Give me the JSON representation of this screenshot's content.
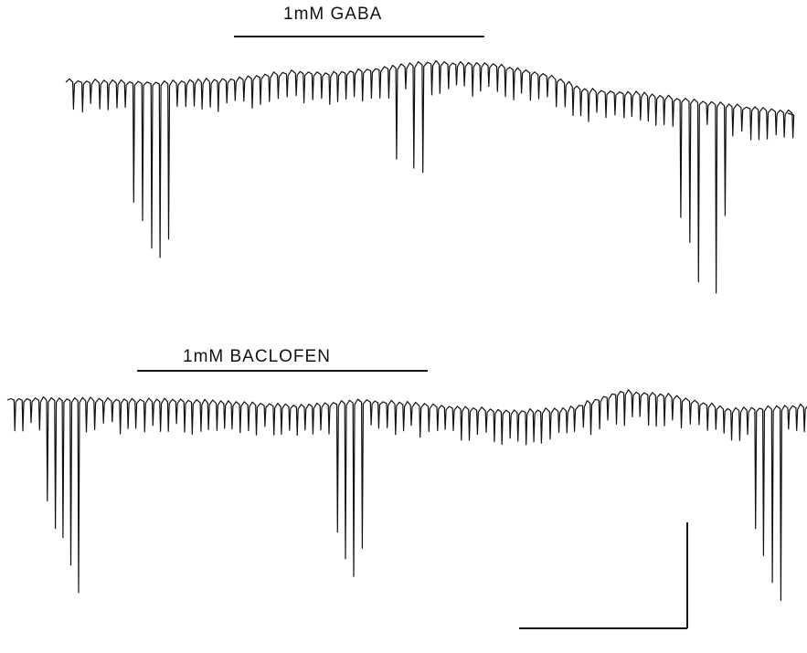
{
  "traces": [
    {
      "label": "1mM  GABA",
      "drug_bar": [
        0.29,
        0.6
      ],
      "color": "#111111"
    },
    {
      "label": "1mM  BACLOFEN",
      "drug_bar": [
        0.17,
        0.53
      ],
      "color": "#111111"
    }
  ]
}
